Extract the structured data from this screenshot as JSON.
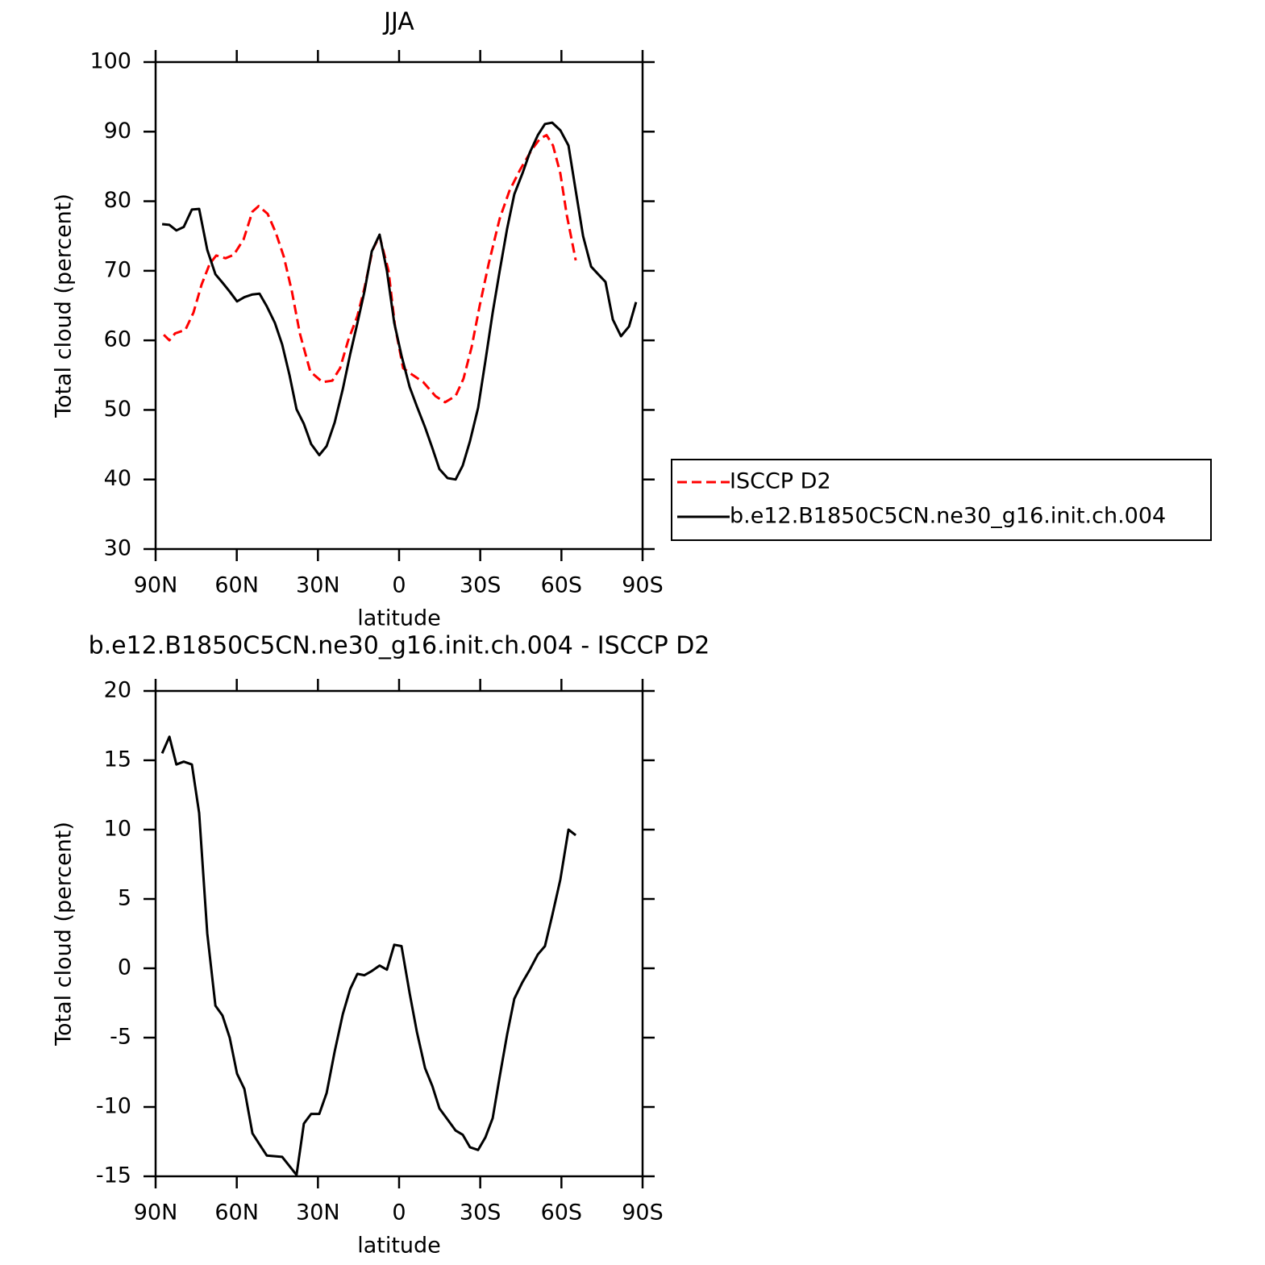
{
  "chart_data": [
    {
      "type": "line",
      "title": "JJA",
      "xlabel": "latitude",
      "ylabel": "Total cloud (percent)",
      "xlim": [
        90,
        -90
      ],
      "xticks": [
        {
          "value": 90,
          "label": "90N"
        },
        {
          "value": 60,
          "label": "60N"
        },
        {
          "value": 30,
          "label": "30N"
        },
        0,
        {
          "value": -30,
          "label": "30S"
        },
        {
          "value": -60,
          "label": "60S"
        },
        {
          "value": -90,
          "label": "90S"
        }
      ],
      "ylim": [
        30,
        100
      ],
      "yticks": [
        30,
        40,
        50,
        60,
        70,
        80,
        90,
        100
      ],
      "legend": "right",
      "series": [
        {
          "name": "ISCCP D2",
          "color": "#ff0000",
          "dash": true,
          "x": [
            87,
            84.9,
            82.8,
            79,
            76,
            73,
            70,
            67.6,
            64.1,
            61.1,
            57.5,
            54.2,
            51.9,
            48.6,
            45.6,
            42.6,
            39.6,
            36.7,
            32.8,
            28.3,
            24.7,
            21.8,
            18.8,
            15.4,
            12.8,
            9.8,
            7.2,
            3.9,
            1.5,
            -1.5,
            -5.1,
            -8.9,
            -13.4,
            -17,
            -20.9,
            -23.8,
            -26.8,
            -29.8,
            -33.1,
            -37.2,
            -40.8,
            -44.7,
            -49.2,
            -52.1,
            -54.5,
            -56.9,
            -59.6,
            -62,
            -65.3
          ],
          "values": [
            60.8,
            60,
            61,
            61.5,
            64,
            68,
            71,
            72.2,
            71.8,
            72.3,
            74.5,
            78.5,
            79.3,
            78.2,
            75.5,
            72,
            67,
            61,
            55.5,
            54,
            54.2,
            56,
            60,
            63.5,
            67.5,
            73,
            75,
            70,
            62,
            56,
            55,
            54,
            52,
            51.1,
            52,
            54.5,
            59,
            65,
            71,
            77.5,
            81.5,
            84.5,
            87.5,
            89,
            89.5,
            88,
            84,
            78,
            71.5
          ]
        },
        {
          "name": "b.e12.B1850C5CN.ne30_g16.init.ch.004",
          "color": "#000000",
          "dash": false,
          "x": [
            87.6,
            84.9,
            82.3,
            79.6,
            76.6,
            73.9,
            70.9,
            67.9,
            65.3,
            62.6,
            59.9,
            57.2,
            54.2,
            51.6,
            48.9,
            45.9,
            43.2,
            40.5,
            37.9,
            35.2,
            32.5,
            29.5,
            26.8,
            23.8,
            20.8,
            18.1,
            15.4,
            12.8,
            10.1,
            7.2,
            4.5,
            1.8,
            -0.9,
            -3.9,
            -6.6,
            -9.6,
            -12.3,
            -14.9,
            -17.9,
            -20.9,
            -23.5,
            -26.2,
            -29.2,
            -31.9,
            -34.6,
            -37.2,
            -39.9,
            -42.6,
            -45.6,
            -48.3,
            -51.3,
            -53.9,
            -56.6,
            -59.6,
            -62.6,
            -65.3,
            -68,
            -71,
            -73.6,
            -76.3,
            -79,
            -82,
            -85,
            -87.6
          ],
          "values": [
            76.7,
            76.6,
            75.8,
            76.3,
            78.8,
            78.9,
            73,
            69.5,
            68.3,
            67,
            65.6,
            66.2,
            66.6,
            66.7,
            64.9,
            62.5,
            59.4,
            55,
            50.1,
            48,
            45.1,
            43.5,
            44.8,
            48.2,
            53,
            58,
            62.5,
            67,
            72.8,
            75.2,
            70,
            62.5,
            57.8,
            53.3,
            50.5,
            47.5,
            44.5,
            41.5,
            40.2,
            40,
            42,
            45.5,
            50.3,
            57,
            64,
            70,
            76,
            81,
            84,
            87,
            89.5,
            91.1,
            91.3,
            90.2,
            88,
            81.5,
            75,
            70.6,
            69.5,
            68.4,
            63,
            60.6,
            62,
            65.5
          ]
        }
      ]
    },
    {
      "type": "line",
      "title": "b.e12.B1850C5CN.ne30_g16.init.ch.004 - ISCCP D2",
      "xlabel": "latitude",
      "ylabel": "Total cloud (percent)",
      "xlim": [
        90,
        -90
      ],
      "xticks": [
        {
          "value": 90,
          "label": "90N"
        },
        {
          "value": 60,
          "label": "60N"
        },
        {
          "value": 30,
          "label": "30N"
        },
        0,
        {
          "value": -30,
          "label": "30S"
        },
        {
          "value": -60,
          "label": "60S"
        },
        {
          "value": -90,
          "label": "90S"
        }
      ],
      "ylim": [
        -15,
        20
      ],
      "yticks": [
        -15,
        -10,
        -5,
        0,
        5,
        10,
        15,
        20
      ],
      "series": [
        {
          "color": "#000000",
          "dash": false,
          "x": [
            87.6,
            84.9,
            82.3,
            79.6,
            76.6,
            73.9,
            70.9,
            67.9,
            65.3,
            62.6,
            59.9,
            57.2,
            54.2,
            51.6,
            48.9,
            43.2,
            37.9,
            35.2,
            32.5,
            29.5,
            26.8,
            23.8,
            20.8,
            18.1,
            15.4,
            12.8,
            10.1,
            7.2,
            4.5,
            1.8,
            -0.9,
            -3.9,
            -6.6,
            -9.6,
            -12.3,
            -14.9,
            -17.9,
            -20.9,
            -23.5,
            -26.2,
            -29.2,
            -31.9,
            -34.6,
            -37.2,
            -39.9,
            -42.6,
            -45.6,
            -48.3,
            -51.3,
            -53.9,
            -56.6,
            -59.6,
            -62.6,
            -65.3
          ],
          "values": [
            15.5,
            16.7,
            14.7,
            14.9,
            14.7,
            11.2,
            2.5,
            -2.7,
            -3.4,
            -5,
            -7.6,
            -8.7,
            -11.9,
            -12.7,
            -13.5,
            -13.6,
            -14.9,
            -11.2,
            -10.5,
            -10.5,
            -9,
            -6,
            -3.3,
            -1.5,
            -0.4,
            -0.5,
            -0.2,
            0.2,
            -0.1,
            1.7,
            1.6,
            -1.8,
            -4.6,
            -7.2,
            -8.5,
            -10.1,
            -10.9,
            -11.7,
            -12,
            -12.9,
            -13.1,
            -12.2,
            -10.8,
            -7.8,
            -4.8,
            -2.2,
            -1,
            -0.1,
            1,
            1.6,
            3.8,
            6.4,
            10,
            9.6
          ]
        }
      ]
    }
  ]
}
